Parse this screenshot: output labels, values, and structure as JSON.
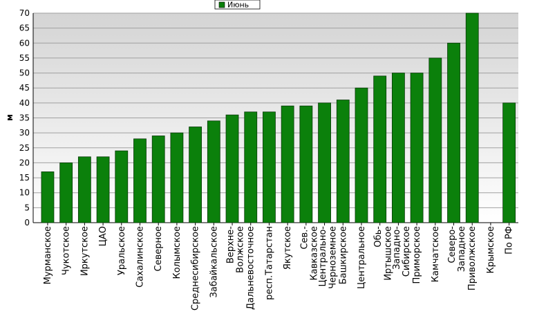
{
  "chart_data": {
    "type": "bar",
    "y_label": "м",
    "series": [
      {
        "name": "Июнь",
        "color": "#0b800b",
        "values": [
          17,
          20,
          22,
          22,
          24,
          28,
          29,
          30,
          32,
          34,
          36,
          37,
          37,
          39,
          39,
          40,
          41,
          45,
          49,
          50,
          50,
          55,
          60,
          70,
          null,
          40
        ]
      }
    ],
    "categories": [
      "Мурманское",
      "Чукотское",
      "Иркутское",
      "ЦАО",
      "Уральское",
      "Сахалинское",
      "Северное",
      "Колымское",
      "Среднесибирское",
      "Забайкальское",
      "Верхне-\nВолжское",
      "Дальневосточное",
      "респ.Татарстан",
      "Якутское",
      "Сев.-\nКавказское",
      "Центрально-\nЧерноземное",
      "Башкирское",
      "Центральное",
      "Обь-\nИртышское",
      "Западно-\nСибирское",
      "Приморское",
      "Камчатское",
      "Северо-\nЗападное",
      "Приволжское",
      "Крымское",
      "По РФ"
    ],
    "ylim": [
      0,
      70
    ],
    "yticks": [
      0,
      5,
      10,
      15,
      20,
      25,
      30,
      35,
      40,
      45,
      50,
      55,
      60,
      65,
      70
    ],
    "grid": true,
    "legend": "top"
  }
}
